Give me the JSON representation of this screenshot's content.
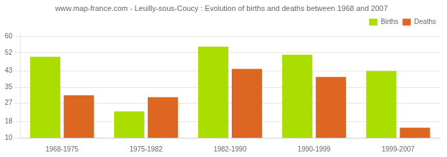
{
  "chart_data": {
    "type": "bar",
    "title": "www.map-france.com - Leuilly-sous-Coucy : Evolution of births and deaths between 1968 and 2007",
    "categories": [
      "1968-1975",
      "1975-1982",
      "1982-1990",
      "1990-1999",
      "1999-2007"
    ],
    "series": [
      {
        "name": "Births",
        "color": "#aadd00",
        "values": [
          50,
          23,
          55,
          51,
          43
        ]
      },
      {
        "name": "Deaths",
        "color": "#dd6622",
        "values": [
          31,
          30,
          44,
          40,
          15
        ]
      }
    ],
    "ylim": [
      10,
      62
    ],
    "yticks": [
      10,
      18,
      27,
      35,
      43,
      52,
      60
    ],
    "grid": true,
    "legend": "upper right"
  }
}
